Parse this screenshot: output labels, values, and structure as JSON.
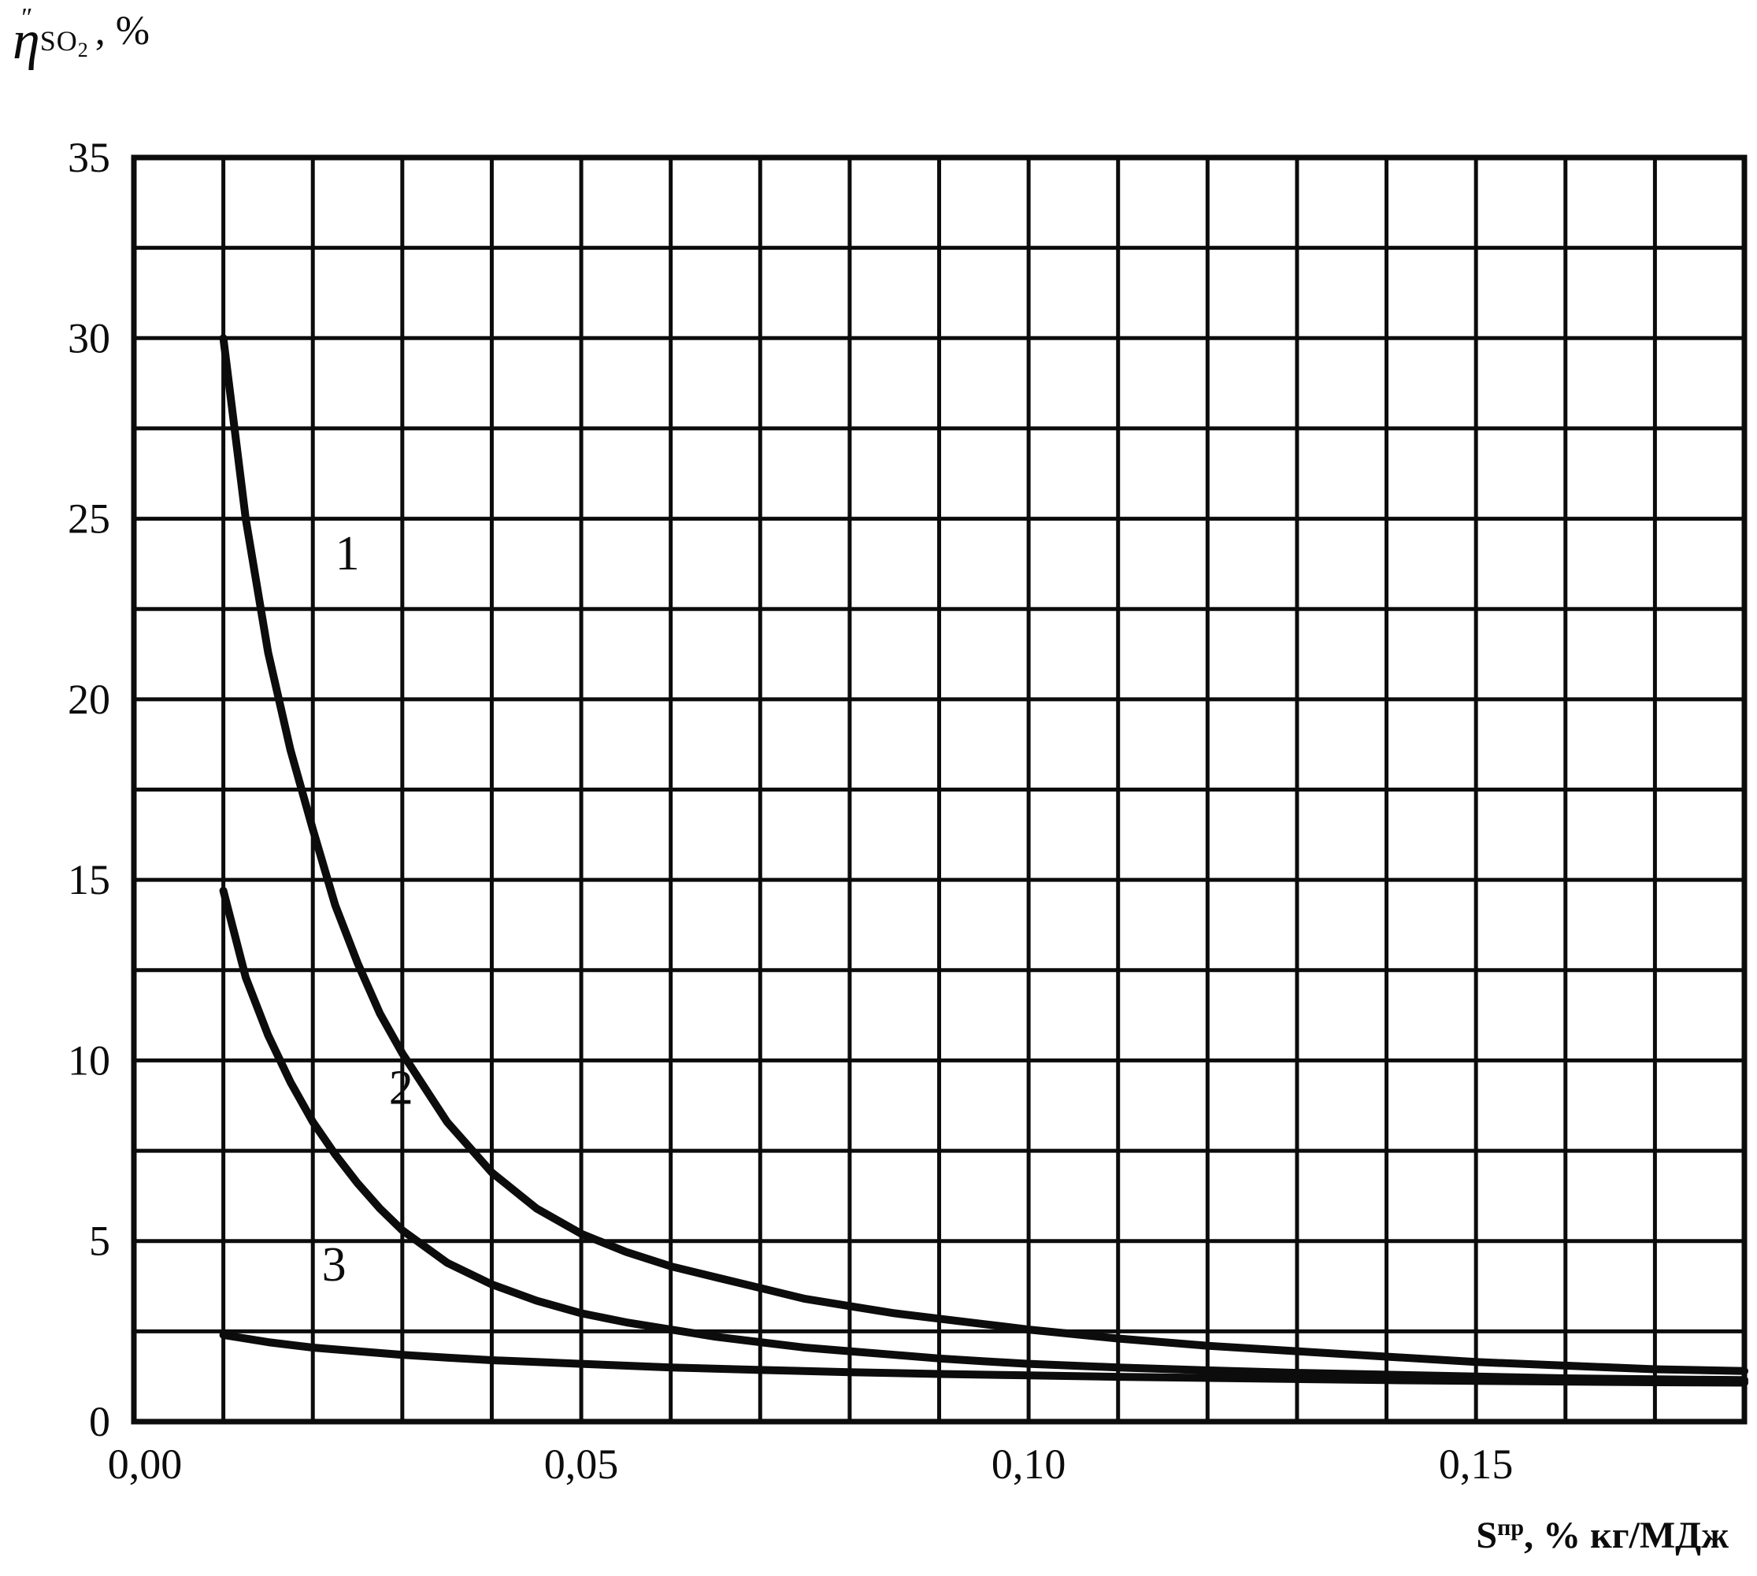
{
  "y_axis_title": {
    "eta": "η",
    "prime": "″",
    "sub_main": "SO",
    "sub_index": "2",
    "suffix": ", %"
  },
  "x_axis_title": {
    "base": "S",
    "sup": "пр",
    "suffix": ", % кг/МДж"
  },
  "chart_data": {
    "type": "line",
    "title": "",
    "xlabel": "Sпр, % кг/МДж",
    "ylabel": "η″SO2, %",
    "xlim": [
      0,
      0.18
    ],
    "ylim": [
      0,
      35
    ],
    "grid": true,
    "x_grid_step": 0.01,
    "y_grid_step": 2.5,
    "x_ticks": [
      {
        "value": 0.0,
        "label": "0,00"
      },
      {
        "value": 0.05,
        "label": "0,05"
      },
      {
        "value": 0.1,
        "label": "0,10"
      },
      {
        "value": 0.15,
        "label": "0,15"
      }
    ],
    "y_ticks": [
      {
        "value": 0,
        "label": "0"
      },
      {
        "value": 5,
        "label": "5"
      },
      {
        "value": 10,
        "label": "10"
      },
      {
        "value": 15,
        "label": "15"
      },
      {
        "value": 20,
        "label": "20"
      },
      {
        "value": 25,
        "label": "25"
      },
      {
        "value": 30,
        "label": "30"
      },
      {
        "value": 35,
        "label": "35"
      }
    ],
    "colors": {
      "line": "#0c0c0c",
      "grid": "#0c0c0c",
      "background": "#ffffff"
    },
    "legend_position": "inline-curve-labels",
    "series": [
      {
        "name": "1",
        "label_pos": [
          0.0225,
          23.6
        ],
        "points": [
          [
            0.01,
            30.0
          ],
          [
            0.0125,
            25.0
          ],
          [
            0.015,
            21.3
          ],
          [
            0.0175,
            18.6
          ],
          [
            0.02,
            16.4
          ],
          [
            0.0225,
            14.3
          ],
          [
            0.025,
            12.7
          ],
          [
            0.0275,
            11.3
          ],
          [
            0.03,
            10.2
          ],
          [
            0.035,
            8.3
          ],
          [
            0.04,
            6.9
          ],
          [
            0.045,
            5.9
          ],
          [
            0.05,
            5.2
          ],
          [
            0.055,
            4.7
          ],
          [
            0.06,
            4.3
          ],
          [
            0.065,
            4.0
          ],
          [
            0.07,
            3.7
          ],
          [
            0.075,
            3.4
          ],
          [
            0.08,
            3.2
          ],
          [
            0.085,
            3.0
          ],
          [
            0.09,
            2.85
          ],
          [
            0.095,
            2.7
          ],
          [
            0.1,
            2.55
          ],
          [
            0.11,
            2.3
          ],
          [
            0.12,
            2.1
          ],
          [
            0.13,
            1.95
          ],
          [
            0.14,
            1.8
          ],
          [
            0.15,
            1.65
          ],
          [
            0.16,
            1.55
          ],
          [
            0.17,
            1.45
          ],
          [
            0.18,
            1.4
          ]
        ]
      },
      {
        "name": "2",
        "label_pos": [
          0.0285,
          8.8
        ],
        "points": [
          [
            0.01,
            14.7
          ],
          [
            0.0125,
            12.3
          ],
          [
            0.015,
            10.7
          ],
          [
            0.0175,
            9.4
          ],
          [
            0.02,
            8.3
          ],
          [
            0.0225,
            7.4
          ],
          [
            0.025,
            6.6
          ],
          [
            0.0275,
            5.9
          ],
          [
            0.03,
            5.3
          ],
          [
            0.035,
            4.4
          ],
          [
            0.04,
            3.8
          ],
          [
            0.045,
            3.35
          ],
          [
            0.05,
            3.0
          ],
          [
            0.055,
            2.75
          ],
          [
            0.06,
            2.55
          ],
          [
            0.065,
            2.35
          ],
          [
            0.07,
            2.2
          ],
          [
            0.075,
            2.05
          ],
          [
            0.08,
            1.95
          ],
          [
            0.085,
            1.85
          ],
          [
            0.09,
            1.75
          ],
          [
            0.095,
            1.67
          ],
          [
            0.1,
            1.6
          ],
          [
            0.11,
            1.5
          ],
          [
            0.12,
            1.42
          ],
          [
            0.13,
            1.35
          ],
          [
            0.14,
            1.3
          ],
          [
            0.15,
            1.25
          ],
          [
            0.16,
            1.2
          ],
          [
            0.17,
            1.17
          ],
          [
            0.18,
            1.15
          ]
        ]
      },
      {
        "name": "3",
        "label_pos": [
          0.021,
          3.9
        ],
        "points": [
          [
            0.01,
            2.4
          ],
          [
            0.015,
            2.2
          ],
          [
            0.02,
            2.05
          ],
          [
            0.025,
            1.95
          ],
          [
            0.03,
            1.85
          ],
          [
            0.035,
            1.77
          ],
          [
            0.04,
            1.7
          ],
          [
            0.045,
            1.65
          ],
          [
            0.05,
            1.6
          ],
          [
            0.06,
            1.5
          ],
          [
            0.07,
            1.43
          ],
          [
            0.08,
            1.37
          ],
          [
            0.09,
            1.32
          ],
          [
            0.1,
            1.28
          ],
          [
            0.11,
            1.24
          ],
          [
            0.12,
            1.21
          ],
          [
            0.13,
            1.18
          ],
          [
            0.14,
            1.15
          ],
          [
            0.15,
            1.13
          ],
          [
            0.16,
            1.11
          ],
          [
            0.17,
            1.09
          ],
          [
            0.18,
            1.08
          ]
        ]
      }
    ]
  }
}
